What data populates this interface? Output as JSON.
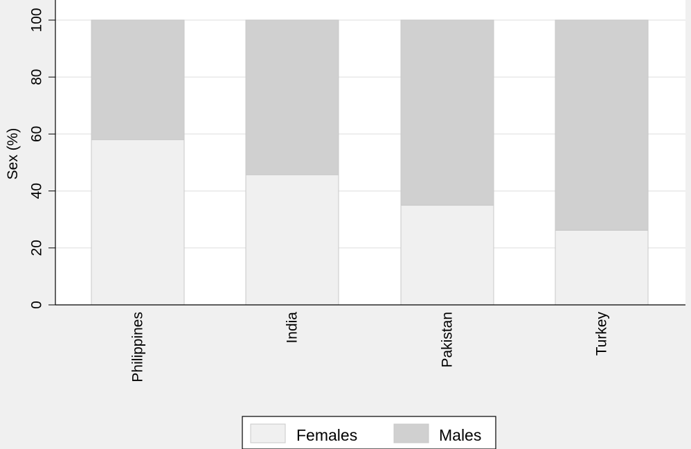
{
  "chart_data": {
    "type": "bar",
    "stacked": true,
    "categories": [
      "Philippines",
      "India",
      "Pakistan",
      "Turkey"
    ],
    "series": [
      {
        "name": "Females",
        "values": [
          58,
          45.7,
          35,
          26.2
        ],
        "color": "#f0f0f0"
      },
      {
        "name": "Males",
        "values": [
          42,
          54.3,
          65,
          73.8
        ],
        "color": "#d0d0d0"
      }
    ],
    "title": "",
    "xlabel": "",
    "ylabel": "Sex (%)",
    "ylim": [
      0,
      100
    ],
    "yticks": [
      0,
      20,
      40,
      60,
      80,
      100
    ],
    "grid": true,
    "legend_position": "bottom"
  }
}
